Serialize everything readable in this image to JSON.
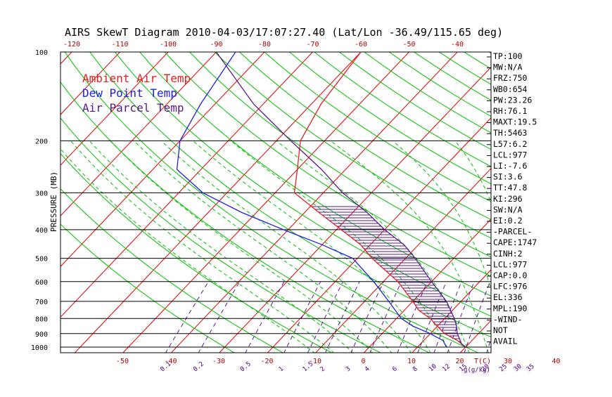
{
  "chart_data": {
    "type": "line",
    "title": "AIRS SkewT Diagram 2010-04-03/17:07:27.40 (Lat/Lon -36.49/115.65 deg)",
    "ylabel": "PRESSURE (MB)",
    "xlabel": "T(C)",
    "mixing_ratio_label": "g(g/kg)",
    "pressure_ticks": [
      "100",
      "200",
      "300",
      "400",
      "500",
      "600",
      "700",
      "800",
      "900",
      "1000"
    ],
    "bottom_temp_ticks": [
      "-50",
      "-40",
      "-30",
      "-20",
      "-10",
      "0",
      "10",
      "20",
      "30",
      "40"
    ],
    "top_temp_ticks": [
      "-120",
      "-110",
      "-100",
      "-90",
      "-80",
      "-70",
      "-60",
      "-50",
      "-40"
    ],
    "mixing_ratio_ticks": [
      "0.1",
      "0.2",
      "0.5",
      "1",
      "1.5",
      "2",
      "3",
      "4",
      "6",
      "8",
      "10",
      "12",
      "15",
      "20",
      "25",
      "30",
      "35"
    ],
    "legend": [
      {
        "name": "Ambient Air Temp",
        "color": "#dd2020"
      },
      {
        "name": "Dew Point Temp",
        "color": "#2020dd"
      },
      {
        "name": "Air Parcel Temp",
        "color": "#5a1a8a"
      }
    ],
    "series": [
      {
        "name": "Ambient Air Temp",
        "color": "#dd2020",
        "points": [
          [
            1000,
            20
          ],
          [
            950,
            17
          ],
          [
            925,
            15
          ],
          [
            900,
            13
          ],
          [
            850,
            10
          ],
          [
            800,
            7
          ],
          [
            750,
            3
          ],
          [
            700,
            0
          ],
          [
            600,
            -7
          ],
          [
            500,
            -17
          ],
          [
            450,
            -22
          ],
          [
            400,
            -29
          ],
          [
            350,
            -37
          ],
          [
            300,
            -46
          ],
          [
            250,
            -50
          ],
          [
            200,
            -55
          ],
          [
            150,
            -58
          ],
          [
            100,
            -60
          ]
        ]
      },
      {
        "name": "Dew Point Temp",
        "color": "#2020dd",
        "points": [
          [
            1000,
            16
          ],
          [
            950,
            14
          ],
          [
            925,
            12
          ],
          [
            900,
            10
          ],
          [
            850,
            5
          ],
          [
            800,
            1
          ],
          [
            700,
            -5
          ],
          [
            600,
            -12
          ],
          [
            500,
            -21
          ],
          [
            450,
            -30
          ],
          [
            400,
            -41
          ],
          [
            350,
            -53
          ],
          [
            300,
            -65
          ],
          [
            250,
            -75
          ],
          [
            200,
            -80
          ],
          [
            150,
            -83
          ],
          [
            100,
            -86
          ]
        ]
      },
      {
        "name": "Air Parcel Temp",
        "color": "#5a1a8a",
        "points": [
          [
            1000,
            20
          ],
          [
            977,
            18.6
          ],
          [
            900,
            15.6
          ],
          [
            850,
            14
          ],
          [
            800,
            12
          ],
          [
            700,
            7
          ],
          [
            600,
            0
          ],
          [
            500,
            -8
          ],
          [
            450,
            -13
          ],
          [
            400,
            -20
          ],
          [
            350,
            -27
          ],
          [
            300,
            -36
          ],
          [
            250,
            -45
          ],
          [
            200,
            -57
          ],
          [
            150,
            -72
          ],
          [
            100,
            -90
          ]
        ]
      }
    ],
    "side_panel": [
      "TP:100",
      "MW:N/A",
      "FRZ:750",
      "WB0:654",
      "PW:23.26",
      "RH:76.1",
      "MAXT:19.5",
      "TH:5463",
      "L57:6.2",
      "LCL:977",
      "LI:-7.6",
      "SI:3.6",
      "TT:47.8",
      "KI:296",
      "SW:N/A",
      "EI:0.2",
      "-PARCEL-",
      "CAPE:1747",
      "CINH:2",
      "LCL:977",
      "CAP:0.0",
      "LFC:976",
      "EL:336",
      "MPL:190",
      "-WIND-",
      "NOT",
      "AVAIL"
    ],
    "colors": {
      "isotherm": "#e00000",
      "dry_adiabat": "#00c000",
      "moist_adiabat": "#00c000",
      "mixing_ratio": "#5a1a8a",
      "cape_hatch": "#5a1a8a",
      "isobar": "#000000"
    }
  }
}
